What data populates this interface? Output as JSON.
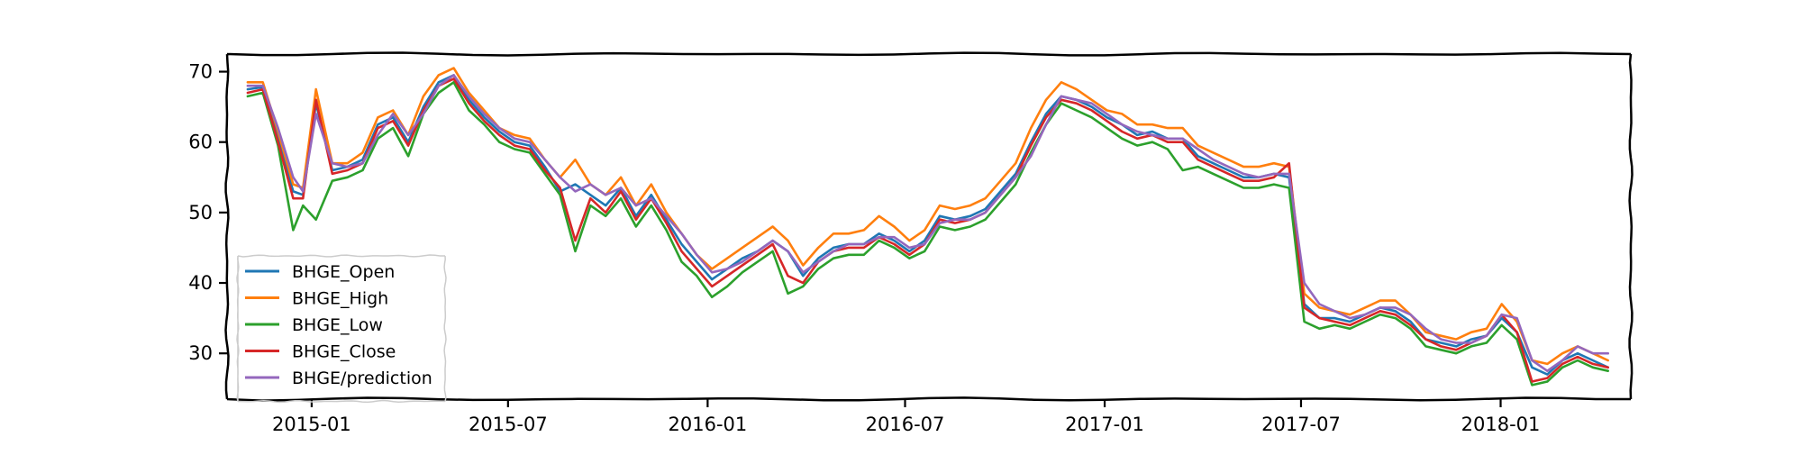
{
  "chart_data": {
    "type": "line",
    "style": "xkcd",
    "title": "",
    "xlabel": "",
    "ylabel": "",
    "xlim": [
      "2014-10-15",
      "2018-05-01"
    ],
    "ylim": [
      23.5,
      72.5
    ],
    "grid": false,
    "legend_position": "lower-left",
    "xticks": [
      "2015-01",
      "2015-07",
      "2016-01",
      "2016-07",
      "2017-01",
      "2017-07",
      "2018-01"
    ],
    "yticks": [
      30,
      40,
      50,
      60,
      70
    ],
    "x": [
      "2014-11-03",
      "2014-11-17",
      "2014-12-01",
      "2014-12-15",
      "2014-12-24",
      "2015-01-05",
      "2015-01-20",
      "2015-02-03",
      "2015-02-17",
      "2015-03-03",
      "2015-03-17",
      "2015-03-31",
      "2015-04-14",
      "2015-04-28",
      "2015-05-12",
      "2015-05-26",
      "2015-06-09",
      "2015-06-23",
      "2015-07-07",
      "2015-07-21",
      "2015-08-04",
      "2015-08-18",
      "2015-09-01",
      "2015-09-15",
      "2015-09-29",
      "2015-10-13",
      "2015-10-27",
      "2015-11-10",
      "2015-11-24",
      "2015-12-08",
      "2015-12-22",
      "2016-01-05",
      "2016-01-19",
      "2016-02-02",
      "2016-02-16",
      "2016-03-01",
      "2016-03-15",
      "2016-03-29",
      "2016-04-12",
      "2016-04-26",
      "2016-05-10",
      "2016-05-24",
      "2016-06-07",
      "2016-06-21",
      "2016-07-05",
      "2016-07-19",
      "2016-08-02",
      "2016-08-16",
      "2016-08-30",
      "2016-09-13",
      "2016-09-27",
      "2016-10-11",
      "2016-10-25",
      "2016-11-08",
      "2016-11-22",
      "2016-12-06",
      "2016-12-20",
      "2017-01-03",
      "2017-01-17",
      "2017-01-31",
      "2017-02-14",
      "2017-02-28",
      "2017-03-14",
      "2017-03-28",
      "2017-04-11",
      "2017-04-25",
      "2017-05-09",
      "2017-05-23",
      "2017-06-06",
      "2017-06-20",
      "2017-07-04",
      "2017-07-18",
      "2017-08-01",
      "2017-08-15",
      "2017-08-29",
      "2017-09-12",
      "2017-09-26",
      "2017-10-10",
      "2017-10-24",
      "2017-11-07",
      "2017-11-21",
      "2017-12-05",
      "2017-12-19",
      "2018-01-02",
      "2018-01-16",
      "2018-01-30",
      "2018-02-13",
      "2018-02-27",
      "2018-03-13",
      "2018-03-27",
      "2018-04-10"
    ],
    "series": [
      {
        "name": "BHGE_Open",
        "color": "#1f77b4",
        "values": [
          67.5,
          67.8,
          60.5,
          53,
          52.5,
          65.5,
          56,
          56.5,
          57.5,
          62.5,
          63.5,
          60,
          65,
          68.5,
          69.5,
          66,
          63.5,
          61.5,
          60,
          59.5,
          56.5,
          53,
          54,
          52.5,
          51,
          53.5,
          49.5,
          52.5,
          49,
          45.5,
          43,
          40.5,
          42,
          43.5,
          44.5,
          46,
          44.5,
          41,
          43.5,
          45,
          45.5,
          45.5,
          47,
          46,
          44.5,
          46,
          49.5,
          49,
          49.5,
          50.5,
          53,
          55.5,
          60,
          64,
          66.5,
          66,
          65,
          63.5,
          62.5,
          61,
          61.5,
          60.5,
          60.5,
          58,
          57,
          56,
          55,
          55,
          55.5,
          55,
          37,
          35,
          35,
          34.5,
          35.5,
          36.5,
          36,
          34.5,
          32,
          31.5,
          31,
          32,
          32.5,
          35,
          33,
          28,
          27,
          29,
          30,
          29,
          28
        ]
      },
      {
        "name": "BHGE_High",
        "color": "#ff7f0e",
        "values": [
          68.5,
          68.5,
          61.5,
          54,
          53.5,
          67.5,
          57,
          57,
          58.5,
          63.5,
          64.5,
          61,
          66.5,
          69.5,
          70.5,
          67,
          64.5,
          62,
          61,
          60.5,
          57.5,
          55,
          57.5,
          54,
          52.5,
          55,
          51,
          54,
          50,
          47,
          44,
          42,
          43.5,
          45,
          46.5,
          48,
          46,
          42.5,
          45,
          47,
          47,
          47.5,
          49.5,
          48,
          46,
          47.5,
          51,
          50.5,
          51,
          52,
          54.5,
          57,
          62,
          66,
          68.5,
          67.5,
          66,
          64.5,
          64,
          62.5,
          62.5,
          62,
          62,
          59.5,
          58.5,
          57.5,
          56.5,
          56.5,
          57,
          56.5,
          38.5,
          36.5,
          36,
          35.5,
          36.5,
          37.5,
          37.5,
          35.5,
          33,
          32.5,
          32,
          33,
          33.5,
          37,
          34.5,
          29,
          28.5,
          30,
          31,
          30,
          29
        ]
      },
      {
        "name": "BHGE_Low",
        "color": "#2ca02c",
        "values": [
          66.5,
          67,
          59.5,
          47.5,
          51,
          49,
          54.5,
          55,
          56,
          60.5,
          62,
          58,
          64,
          67,
          68.5,
          64.5,
          62.5,
          60,
          59,
          58.5,
          55.5,
          52.5,
          44.5,
          51,
          49.5,
          52,
          48,
          51,
          47.5,
          43,
          41,
          38,
          39.5,
          41.5,
          43,
          44.5,
          38.5,
          39.5,
          42,
          43.5,
          44,
          44,
          46,
          45,
          43.5,
          44.5,
          48,
          47.5,
          48,
          49,
          51.5,
          54,
          58.5,
          62.5,
          65.5,
          64.5,
          63.5,
          62,
          60.5,
          59.5,
          60,
          59,
          56,
          56.5,
          55.5,
          54.5,
          53.5,
          53.5,
          54,
          53.5,
          34.5,
          33.5,
          34,
          33.5,
          34.5,
          35.5,
          35,
          33.5,
          31,
          30.5,
          30,
          31,
          31.5,
          34,
          32,
          25.5,
          26,
          28,
          29,
          28,
          27.5
        ]
      },
      {
        "name": "BHGE_Close",
        "color": "#d62728",
        "values": [
          67,
          67.5,
          60,
          52,
          52,
          66,
          55.5,
          56,
          57,
          62,
          63,
          59.5,
          64.5,
          68,
          69,
          65.5,
          63,
          61,
          59.5,
          59,
          56,
          53.5,
          46,
          52,
          50,
          53,
          49,
          52,
          48.5,
          44.5,
          42,
          39.5,
          41,
          42.5,
          44,
          45.5,
          41,
          40,
          43,
          44.5,
          45,
          45,
          46.5,
          45.5,
          44,
          45.5,
          49,
          48.5,
          49,
          50,
          52.5,
          55,
          59.5,
          63.5,
          66,
          65.5,
          64.5,
          63,
          61.5,
          60.5,
          61,
          60,
          60,
          57.5,
          56.5,
          55.5,
          54.5,
          54.5,
          55,
          57,
          36.5,
          35,
          34.5,
          34,
          35,
          36,
          35.5,
          34,
          32,
          31,
          30.5,
          31.5,
          32.5,
          35.5,
          33,
          26,
          26.5,
          28.5,
          29.5,
          28.5,
          28
        ]
      },
      {
        "name": "BHGE/prediction",
        "color": "#9467bd",
        "values": [
          68,
          68,
          62,
          55,
          53,
          64,
          57,
          56.5,
          57,
          61,
          64,
          61,
          64,
          68,
          69.5,
          66.5,
          64,
          62,
          60.5,
          60,
          57.5,
          55,
          53,
          54,
          52.5,
          53.5,
          51,
          52,
          49.5,
          47,
          44,
          41.5,
          42,
          43,
          44.5,
          46,
          44.5,
          41.5,
          43,
          44.5,
          45.5,
          45.5,
          46.5,
          46.5,
          45,
          45.5,
          48.5,
          49,
          49,
          50,
          52.5,
          55,
          58,
          62.5,
          66.5,
          66,
          65.5,
          64,
          62.5,
          61.5,
          61,
          60.5,
          60.5,
          59,
          57.5,
          56.5,
          55.5,
          55,
          55.5,
          55.5,
          40,
          37,
          36,
          35,
          35.5,
          36.5,
          36.5,
          35.5,
          33.5,
          32,
          31.5,
          31.5,
          32.5,
          35.5,
          35,
          29,
          27.5,
          29,
          31,
          30,
          30
        ]
      }
    ]
  },
  "legend": {
    "items": [
      {
        "label": "BHGE_Open",
        "color": "#1f77b4"
      },
      {
        "label": "BHGE_High",
        "color": "#ff7f0e"
      },
      {
        "label": "BHGE_Low",
        "color": "#2ca02c"
      },
      {
        "label": "BHGE_Close",
        "color": "#d62728"
      },
      {
        "label": "BHGE/prediction",
        "color": "#9467bd"
      }
    ]
  }
}
